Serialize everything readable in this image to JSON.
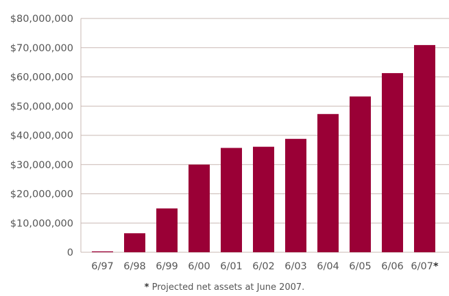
{
  "chart_data": {
    "type": "bar",
    "categories": [
      "6/97",
      "6/98",
      "6/99",
      "6/00",
      "6/01",
      "6/02",
      "6/03",
      "6/04",
      "6/05",
      "6/06",
      "6/07"
    ],
    "category_markers": [
      "",
      "",
      "",
      "",
      "",
      "",
      "",
      "",
      "",
      "",
      "*"
    ],
    "values": [
      300000,
      6500000,
      15000000,
      30000000,
      35700000,
      36100000,
      38800000,
      47300000,
      53300000,
      61300000,
      70900000
    ],
    "ylim": [
      0,
      80000000
    ],
    "ytick_values": [
      0,
      10000000,
      20000000,
      30000000,
      40000000,
      50000000,
      60000000,
      70000000,
      80000000
    ],
    "ytick_labels": [
      "0",
      "$10,000,000",
      "$20,000,000",
      "$30,000,000",
      "$40,000,000",
      "$50,000,000",
      "$60,000,000",
      "$70,000,000",
      "$80,000,000"
    ],
    "grid": true,
    "bar_color": "#9a0036",
    "grid_color": "#c9b8b3",
    "title": "",
    "xlabel": "",
    "ylabel": ""
  },
  "footnote": {
    "marker": "*",
    "text": " Projected net assets at June 2007."
  }
}
